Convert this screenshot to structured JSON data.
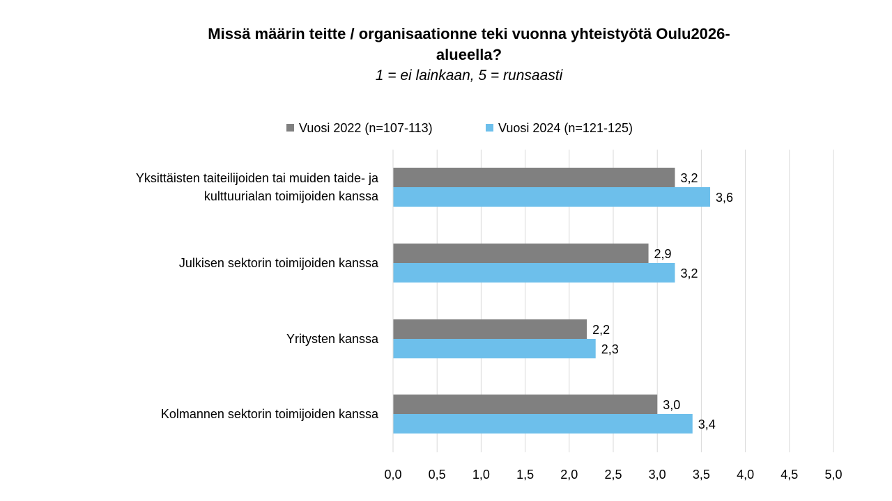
{
  "title": {
    "line1": "Missä määrin teitte / organisaationne teki vuonna  yhteistyötä Oulu2026-",
    "line2": "alueella?",
    "subtitle": "1 = ei lainkaan, 5 = runsaasti"
  },
  "colors": {
    "series_2022": "#808080",
    "series_2024": "#6dbfeb",
    "grid": "#d9d9d9"
  },
  "chart_data": {
    "type": "bar",
    "orientation": "horizontal",
    "categories": [
      [
        "Yksittäisten taiteilijoiden tai muiden taide- ja",
        "kulttuurialan toimijoiden kanssa"
      ],
      [
        "Julkisen sektorin toimijoiden kanssa"
      ],
      [
        "Yritysten kanssa"
      ],
      [
        "Kolmannen sektorin toimijoiden kanssa"
      ]
    ],
    "series": [
      {
        "name": "Vuosi 2022 (n=107-113)",
        "values": [
          3.2,
          2.9,
          2.2,
          3.0
        ],
        "labels": [
          "3,2",
          "2,9",
          "2,2",
          "3,0"
        ]
      },
      {
        "name": "Vuosi 2024 (n=121-125)",
        "values": [
          3.6,
          3.2,
          2.3,
          3.4
        ],
        "labels": [
          "3,6",
          "3,2",
          "2,3",
          "3,4"
        ]
      }
    ],
    "xlim": [
      0,
      5
    ],
    "xticks": [
      0,
      0.5,
      1,
      1.5,
      2,
      2.5,
      3,
      3.5,
      4,
      4.5,
      5
    ],
    "xtick_labels": [
      "0,0",
      "0,5",
      "1,0",
      "1,5",
      "2,0",
      "2,5",
      "3,0",
      "3,5",
      "4,0",
      "4,5",
      "5,0"
    ],
    "grid": "vertical",
    "legend_position": "top"
  }
}
